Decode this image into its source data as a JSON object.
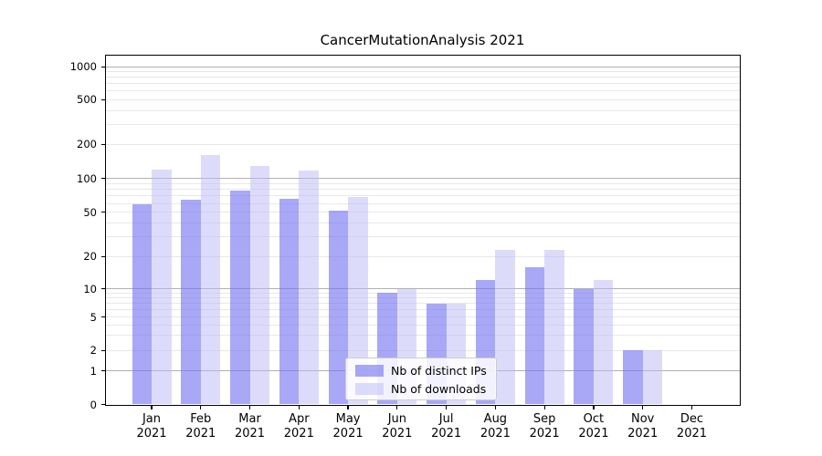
{
  "chart_data": {
    "type": "bar",
    "title": "CancerMutationAnalysis 2021",
    "year": "2021",
    "categories": [
      "Jan",
      "Feb",
      "Mar",
      "Apr",
      "May",
      "Jun",
      "Jul",
      "Aug",
      "Sep",
      "Oct",
      "Nov",
      "Dec"
    ],
    "series": [
      {
        "name": "Nb of distinct IPs",
        "color": "rgba(115,115,240,0.62)",
        "approx_hex": "#a8a8f5",
        "values": [
          59,
          65,
          78,
          66,
          52,
          9,
          7,
          12,
          16,
          10,
          2,
          0
        ]
      },
      {
        "name": "Nb of downloads",
        "color": "rgba(185,185,245,0.5)",
        "approx_hex": "#dcdcfa",
        "values": [
          120,
          160,
          128,
          118,
          69,
          10,
          7,
          23,
          23,
          12,
          2,
          0
        ]
      }
    ],
    "yscale": "symlog",
    "ylim": [
      0,
      1300
    ],
    "y_tick_labels": [
      "1000",
      "500",
      "200",
      "100",
      "50",
      "20",
      "10",
      "5",
      "2",
      "1",
      "0"
    ],
    "grid": "horizontal, major lines at 1/10/100/1000, light minor lines per decade",
    "legend_position": "lower center",
    "colors": {
      "background": "#ffffff",
      "spine": "#000000",
      "grid_major": "#b0b0b0",
      "grid_minor": "#e8e8e8"
    }
  }
}
